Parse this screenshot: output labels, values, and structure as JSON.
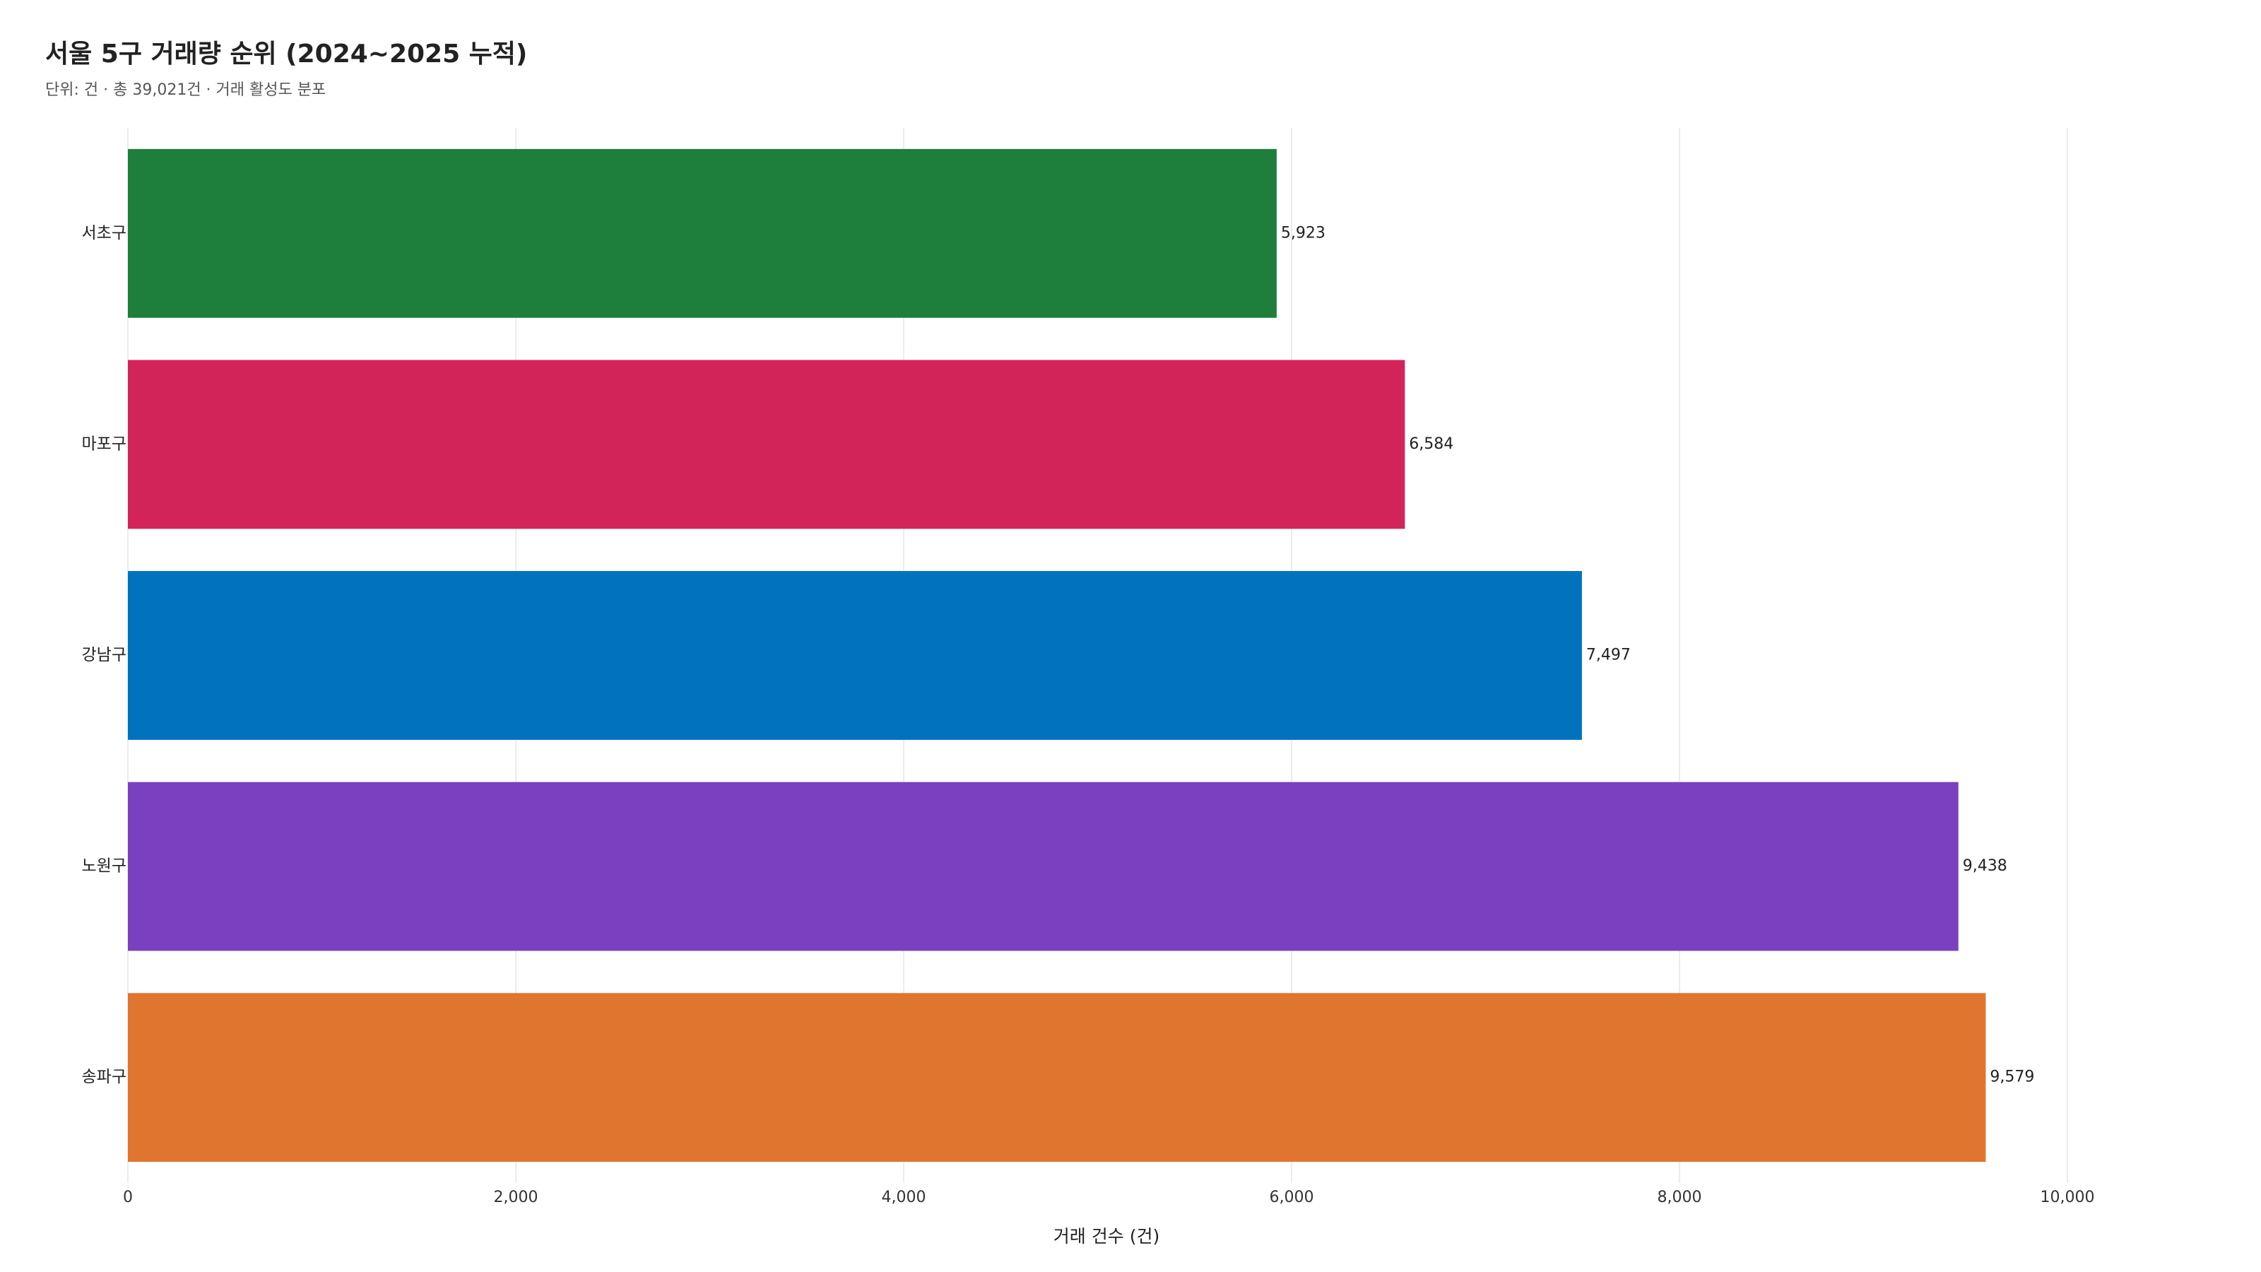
{
  "chart_data": {
    "type": "barh",
    "title": "서울 5구 거래량 순위 (2024~2025 누적)",
    "subtitle": "단위: 건 · 총 39,021건 · 거래 활성도 분포",
    "x_label": "거래 건수 (건)",
    "categories": [
      "서초구",
      "마포구",
      "강남구",
      "노원구",
      "송파구"
    ],
    "values": [
      5923,
      6584,
      7497,
      9438,
      9579
    ],
    "value_labels": [
      "5,923",
      "6,584",
      "7,497",
      "9,438",
      "9,579"
    ],
    "colors": [
      "#1e7e3c",
      "#d3245a",
      "#0072be",
      "#7b40c0",
      "#e0752f"
    ],
    "xlim": [
      0,
      10000
    ],
    "xticks": [
      0,
      {
        "value": 2000,
        "label": "2,000"
      },
      {
        "value": 4000,
        "label": "4,000"
      },
      {
        "value": 6000,
        "label": "6,000"
      },
      {
        "value": 8000,
        "label": "8,000"
      },
      {
        "value": 10000,
        "label": "10,000"
      }
    ],
    "grid": true
  }
}
